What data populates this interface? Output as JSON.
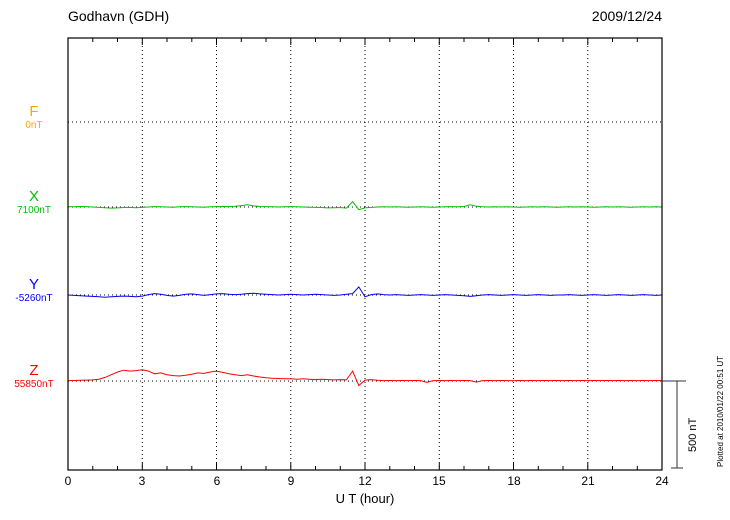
{
  "header": {
    "title": "Godhavn (GDH)",
    "date": "2009/12/24"
  },
  "chart_data": {
    "type": "line",
    "title": "Godhavn (GDH)",
    "date": "2009/12/24",
    "xlabel": "U T (hour)",
    "x_range": [
      0,
      24
    ],
    "x_tick_values": [
      0,
      3,
      6,
      9,
      12,
      15,
      18,
      21,
      24
    ],
    "x_tick_labels": [
      "0",
      "3",
      "6",
      "9",
      "12",
      "15",
      "18",
      "21",
      "24"
    ],
    "sample_step_hours": 0.25,
    "unit": "nT",
    "scale_bar": {
      "label": "500 nT",
      "nT": 500
    },
    "plotted_note": "Plotted at 2010/01/22 00:51 UT",
    "grid": "dotted",
    "series": [
      {
        "name": "F",
        "baseline_label": "0nT",
        "baseline_value_nT": 0,
        "color": "#FFA500",
        "values": []
      },
      {
        "name": "X",
        "baseline_label": "7100nT",
        "baseline_value_nT": 7100,
        "color": "#00C000",
        "values": [
          2,
          1,
          3,
          2,
          0,
          -2,
          -4,
          -6,
          -5,
          -3,
          -2,
          -4,
          -2,
          0,
          2,
          1,
          0,
          -1,
          1,
          2,
          1,
          0,
          -1,
          1,
          2,
          3,
          2,
          4,
          8,
          12,
          6,
          3,
          2,
          1,
          0,
          1,
          2,
          1,
          0,
          -1,
          -2,
          -3,
          -5,
          -4,
          -3,
          -6,
          30,
          -15,
          -5,
          -2,
          0,
          1,
          0,
          1,
          0,
          -1,
          0,
          1,
          0,
          -1,
          0,
          1,
          2,
          1,
          3,
          12,
          4,
          1,
          0,
          1,
          0,
          1,
          0,
          -1,
          0,
          1,
          0,
          1,
          0,
          -1,
          0,
          1,
          0,
          1,
          0,
          -1,
          0,
          1,
          0,
          1,
          0,
          -1,
          0,
          1,
          0,
          1,
          0
        ]
      },
      {
        "name": "Y",
        "baseline_label": "-5260nT",
        "baseline_value_nT": -5260,
        "color": "#0000FF",
        "values": [
          0,
          -2,
          -4,
          -6,
          -8,
          -10,
          -12,
          -10,
          -8,
          -6,
          -8,
          -10,
          -6,
          2,
          8,
          4,
          -2,
          -6,
          -2,
          4,
          6,
          2,
          -2,
          2,
          6,
          8,
          4,
          2,
          4,
          8,
          10,
          6,
          4,
          2,
          0,
          2,
          4,
          2,
          0,
          2,
          4,
          2,
          0,
          -2,
          0,
          4,
          8,
          45,
          -10,
          2,
          6,
          2,
          0,
          2,
          0,
          -2,
          0,
          2,
          0,
          -2,
          0,
          2,
          0,
          -2,
          -4,
          -8,
          -4,
          0,
          2,
          0,
          -2,
          0,
          2,
          0,
          -2,
          0,
          2,
          0,
          -2,
          0,
          0,
          2,
          0,
          -2,
          0,
          2,
          0,
          -2,
          0,
          2,
          0,
          -2,
          0,
          2,
          0,
          -2,
          0
        ]
      },
      {
        "name": "Z",
        "baseline_label": "55850nT",
        "baseline_value_nT": 55850,
        "color": "#FF0000",
        "values": [
          2,
          3,
          4,
          5,
          6,
          10,
          20,
          35,
          50,
          60,
          55,
          58,
          62,
          55,
          40,
          45,
          35,
          30,
          28,
          32,
          38,
          45,
          42,
          50,
          55,
          48,
          40,
          35,
          30,
          35,
          28,
          22,
          18,
          15,
          14,
          13,
          12,
          10,
          12,
          10,
          8,
          10,
          8,
          6,
          8,
          6,
          55,
          -25,
          5,
          8,
          4,
          2,
          3,
          2,
          3,
          2,
          3,
          2,
          -8,
          2,
          3,
          2,
          3,
          2,
          3,
          2,
          -6,
          2,
          3,
          2,
          3,
          2,
          2,
          3,
          2,
          3,
          2,
          3,
          2,
          3,
          2,
          3,
          2,
          3,
          2,
          3,
          2,
          3,
          2,
          3,
          2,
          3,
          2,
          3,
          2,
          3,
          2
        ]
      }
    ]
  }
}
